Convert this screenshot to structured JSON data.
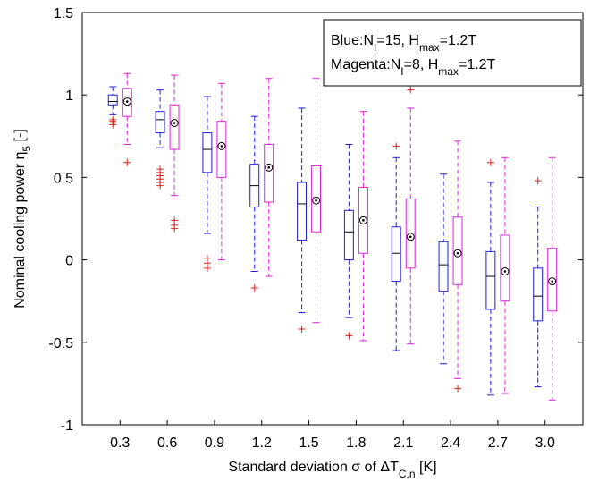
{
  "chart_data": {
    "type": "box",
    "categories": [
      "0.3",
      "0.6",
      "0.9",
      "1.2",
      "1.5",
      "1.8",
      "2.1",
      "2.4",
      "2.7",
      "3.0"
    ],
    "x_label": [
      {
        "text": "Standard deviation σ of ΔT"
      },
      {
        "text": "C,n",
        "sub": true
      },
      {
        "text": " [K]"
      }
    ],
    "y_label": [
      {
        "text": "Nominal cooling power η"
      },
      {
        "text": "5",
        "sub": true
      },
      {
        "text": " [-]"
      }
    ],
    "ylim": [
      -1,
      1.5
    ],
    "yticks": [
      -1,
      -0.5,
      0,
      0.5,
      1,
      1.5
    ],
    "outlier_color": "#e0201b",
    "series": [
      {
        "name": [
          {
            "text": "Blue:N"
          },
          {
            "text": "I",
            "sub": true
          },
          {
            "text": "=15, H"
          },
          {
            "text": "max",
            "sub": true
          },
          {
            "text": "=1.2T"
          }
        ],
        "color": "#1d1de0",
        "median_marker": "line",
        "boxes": [
          {
            "whislo": 0.88,
            "q1": 0.94,
            "med": 0.96,
            "q3": 1.0,
            "whishi": 1.05,
            "fliers": [
              0.85,
              0.84,
              0.83,
              0.82
            ]
          },
          {
            "whislo": 0.68,
            "q1": 0.77,
            "med": 0.85,
            "q3": 0.9,
            "whishi": 1.03,
            "fliers": [
              0.55,
              0.53,
              0.51,
              0.49,
              0.47,
              0.45
            ]
          },
          {
            "whislo": 0.16,
            "q1": 0.53,
            "med": 0.67,
            "q3": 0.77,
            "whishi": 0.99,
            "fliers": [
              0.01,
              -0.02,
              -0.05
            ]
          },
          {
            "whislo": -0.07,
            "q1": 0.32,
            "med": 0.45,
            "q3": 0.58,
            "whishi": 0.87,
            "fliers": [
              -0.17
            ]
          },
          {
            "whislo": -0.32,
            "q1": 0.12,
            "med": 0.34,
            "q3": 0.47,
            "whishi": 0.92,
            "fliers": [
              -0.42
            ]
          },
          {
            "whislo": -0.35,
            "q1": 0.0,
            "med": 0.17,
            "q3": 0.3,
            "whishi": 0.7,
            "fliers": [
              -0.46
            ]
          },
          {
            "whislo": -0.55,
            "q1": -0.13,
            "med": 0.04,
            "q3": 0.2,
            "whishi": 0.62,
            "fliers": [
              0.69
            ]
          },
          {
            "whislo": -0.63,
            "q1": -0.19,
            "med": -0.03,
            "q3": 0.11,
            "whishi": 0.52,
            "fliers": []
          },
          {
            "whislo": -0.82,
            "q1": -0.3,
            "med": -0.1,
            "q3": 0.05,
            "whishi": 0.47,
            "fliers": [
              0.59
            ]
          },
          {
            "whislo": -0.77,
            "q1": -0.37,
            "med": -0.22,
            "q3": -0.05,
            "whishi": 0.32,
            "fliers": [
              0.48
            ]
          }
        ]
      },
      {
        "name": [
          {
            "text": "Magenta:N"
          },
          {
            "text": "I",
            "sub": true
          },
          {
            "text": "=8, H"
          },
          {
            "text": "max",
            "sub": true
          },
          {
            "text": "=1.2T"
          }
        ],
        "color": "#e020e0",
        "median_marker": "dot",
        "boxes": [
          {
            "whislo": 0.7,
            "q1": 0.87,
            "med": 0.96,
            "q3": 1.04,
            "whishi": 1.13,
            "fliers": [
              0.59
            ]
          },
          {
            "whislo": 0.39,
            "q1": 0.67,
            "med": 0.83,
            "q3": 0.94,
            "whishi": 1.12,
            "fliers": [
              0.24,
              0.21,
              0.19
            ]
          },
          {
            "whislo": 0.0,
            "q1": 0.5,
            "med": 0.69,
            "q3": 0.84,
            "whishi": 1.07,
            "fliers": []
          },
          {
            "whislo": -0.1,
            "q1": 0.35,
            "med": 0.56,
            "q3": 0.7,
            "whishi": 1.1,
            "fliers": []
          },
          {
            "whislo": -0.38,
            "q1": 0.17,
            "med": 0.36,
            "q3": 0.57,
            "whishi": 1.1,
            "fliers": []
          },
          {
            "whislo": -0.49,
            "q1": 0.04,
            "med": 0.24,
            "q3": 0.44,
            "whishi": 0.9,
            "fliers": []
          },
          {
            "whislo": -0.51,
            "q1": -0.05,
            "med": 0.14,
            "q3": 0.37,
            "whishi": 0.92,
            "fliers": [
              1.03
            ]
          },
          {
            "whislo": -0.72,
            "q1": -0.15,
            "med": 0.04,
            "q3": 0.26,
            "whishi": 0.72,
            "fliers": [
              -0.78
            ]
          },
          {
            "whislo": -0.81,
            "q1": -0.25,
            "med": -0.07,
            "q3": 0.15,
            "whishi": 0.62,
            "fliers": []
          },
          {
            "whislo": -0.85,
            "q1": -0.31,
            "med": -0.13,
            "q3": 0.07,
            "whishi": 0.62,
            "fliers": []
          }
        ]
      }
    ]
  }
}
